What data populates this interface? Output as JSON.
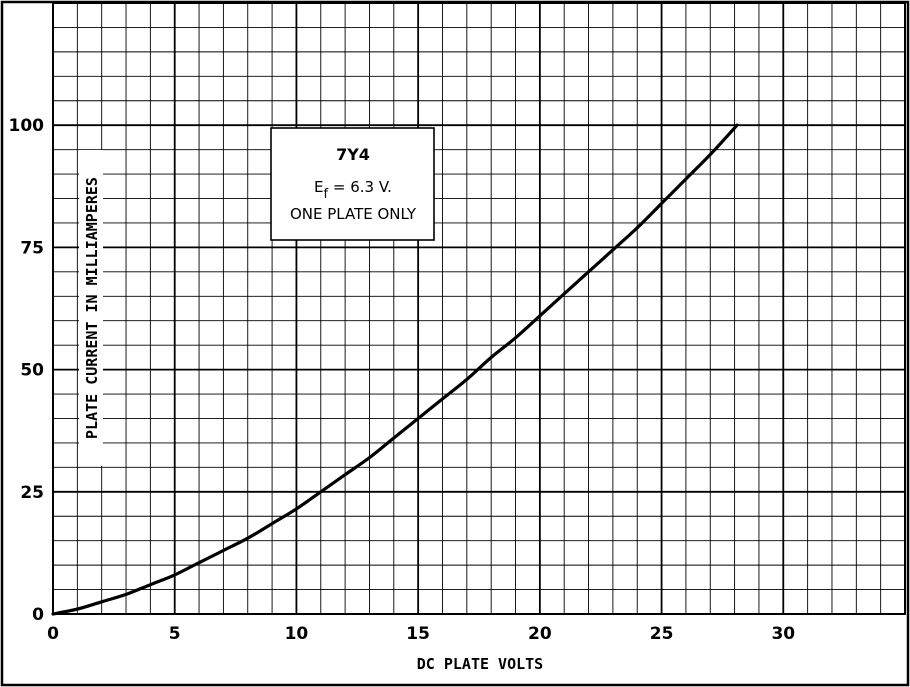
{
  "chart_data": {
    "type": "line",
    "xlabel": "DC PLATE VOLTS",
    "ylabel": "PLATE CURRENT IN MILLIAMPERES",
    "xlim": [
      0,
      35
    ],
    "ylim": [
      0,
      125
    ],
    "x_ticks": [
      "0",
      "5",
      "10",
      "15",
      "20",
      "25",
      "30"
    ],
    "y_ticks": [
      "0",
      "25",
      "50",
      "75",
      "100"
    ],
    "grid": true,
    "legend": {
      "title": "7Y4",
      "line1_main": "E",
      "line1_sub": "f",
      "line1_rest": " = 6.3 V.",
      "line2": "ONE PLATE ONLY",
      "placement": "top-center"
    },
    "series": [
      {
        "x": [
          0,
          1,
          2,
          3,
          4,
          5,
          6,
          7,
          8,
          9,
          10,
          11,
          12,
          13,
          14,
          15,
          16,
          17,
          18,
          19,
          20,
          21,
          22,
          23,
          24,
          25,
          26,
          27,
          28.1
        ],
        "y": [
          0,
          1,
          2.5,
          4,
          6,
          8,
          10.5,
          13,
          15.5,
          18.5,
          21.5,
          25,
          28.5,
          32,
          36,
          40,
          44,
          48,
          52.5,
          56.5,
          61,
          65.5,
          70,
          74.5,
          79,
          84,
          89,
          94,
          100
        ]
      }
    ]
  }
}
